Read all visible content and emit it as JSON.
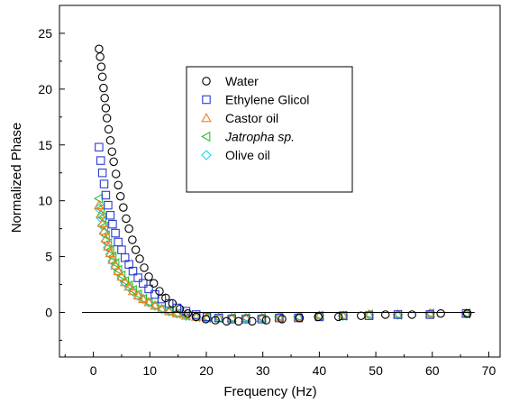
{
  "chart_data": {
    "type": "scatter",
    "title": "",
    "xlabel": "Frequency (Hz)",
    "ylabel": "Normalized Phase",
    "xlim": [
      -6,
      72
    ],
    "ylim": [
      -4,
      27.5
    ],
    "xticks": [
      0,
      10,
      20,
      30,
      40,
      50,
      60,
      70
    ],
    "yticks": [
      0,
      5,
      10,
      15,
      20,
      25
    ],
    "grid": false,
    "legend_position": "top-center",
    "reference_line_y": 0,
    "series": [
      {
        "name": "Water",
        "marker": "circle",
        "color": "#000000",
        "x": [
          1.0,
          1.2,
          1.4,
          1.6,
          1.8,
          2.0,
          2.2,
          2.4,
          2.7,
          3.0,
          3.3,
          3.6,
          4.0,
          4.4,
          4.8,
          5.3,
          5.8,
          6.3,
          6.9,
          7.5,
          8.2,
          9.0,
          9.8,
          10.7,
          11.7,
          12.8,
          14.0,
          15.3,
          16.7,
          18.2,
          19.9,
          21.6,
          23.6,
          25.7,
          28.1,
          30.6,
          33.4,
          36.5,
          39.8,
          43.4,
          47.4,
          51.7,
          56.4,
          61.5,
          66.2
        ],
        "y": [
          23.6,
          22.9,
          22.0,
          21.1,
          20.1,
          19.2,
          18.3,
          17.4,
          16.4,
          15.4,
          14.4,
          13.5,
          12.4,
          11.4,
          10.4,
          9.4,
          8.4,
          7.5,
          6.5,
          5.6,
          4.8,
          4.0,
          3.2,
          2.6,
          1.9,
          1.3,
          0.8,
          0.3,
          -0.1,
          -0.4,
          -0.6,
          -0.7,
          -0.8,
          -0.8,
          -0.8,
          -0.7,
          -0.6,
          -0.5,
          -0.4,
          -0.4,
          -0.3,
          -0.2,
          -0.2,
          -0.1,
          -0.1
        ]
      },
      {
        "name": "Ethylene Glicol",
        "marker": "square",
        "color": "#2b3bd1",
        "x": [
          1.0,
          1.3,
          1.6,
          1.9,
          2.2,
          2.6,
          3.0,
          3.4,
          3.9,
          4.4,
          5.0,
          5.6,
          6.3,
          7.0,
          7.9,
          8.8,
          9.8,
          10.9,
          12.1,
          13.4,
          14.8,
          16.4,
          18.2,
          20.1,
          22.2,
          24.5,
          27.0,
          29.8,
          32.9,
          36.3,
          40.0,
          44.2,
          48.8,
          53.9,
          59.6,
          66.0
        ],
        "y": [
          14.8,
          13.6,
          12.5,
          11.5,
          10.5,
          9.6,
          8.7,
          7.9,
          7.1,
          6.3,
          5.6,
          4.9,
          4.3,
          3.7,
          3.1,
          2.6,
          2.1,
          1.6,
          1.2,
          0.8,
          0.4,
          0.1,
          -0.2,
          -0.4,
          -0.5,
          -0.6,
          -0.6,
          -0.6,
          -0.5,
          -0.5,
          -0.4,
          -0.3,
          -0.3,
          -0.2,
          -0.2,
          -0.1
        ]
      },
      {
        "name": "Castor oil",
        "marker": "triangle-up",
        "color": "#f07f1e",
        "x": [
          1.0,
          1.3,
          1.6,
          1.9,
          2.2,
          2.6,
          3.0,
          3.4,
          3.9,
          4.4,
          5.0,
          5.6,
          6.3,
          7.0,
          7.9,
          8.8,
          9.8,
          10.9,
          12.1,
          13.4,
          14.8,
          16.4,
          18.2,
          20.1,
          22.2,
          24.5,
          27.0,
          29.8,
          32.9,
          36.3,
          40.0,
          44.2,
          48.8,
          53.9,
          59.6,
          66.0
        ],
        "y": [
          9.6,
          8.8,
          8.0,
          7.3,
          6.6,
          5.9,
          5.3,
          4.7,
          4.2,
          3.7,
          3.2,
          2.7,
          2.3,
          1.9,
          1.5,
          1.2,
          0.9,
          0.6,
          0.3,
          0.1,
          -0.1,
          -0.3,
          -0.4,
          -0.5,
          -0.5,
          -0.5,
          -0.5,
          -0.5,
          -0.4,
          -0.4,
          -0.3,
          -0.3,
          -0.2,
          -0.2,
          -0.1,
          -0.1
        ]
      },
      {
        "name": "Jatropha sp.",
        "marker": "triangle-left",
        "color": "#28c228",
        "x": [
          1.0,
          1.3,
          1.6,
          1.9,
          2.2,
          2.6,
          3.0,
          3.4,
          3.9,
          4.4,
          5.0,
          5.6,
          6.3,
          7.0,
          7.9,
          8.8,
          9.8,
          10.9,
          12.1,
          13.4,
          14.8,
          16.4,
          18.2,
          20.1,
          22.2,
          24.5,
          27.0,
          29.8,
          32.9,
          36.3,
          40.0,
          44.2,
          48.8,
          53.9,
          59.6,
          66.0
        ],
        "y": [
          10.2,
          9.3,
          8.5,
          7.7,
          6.9,
          6.2,
          5.6,
          5.0,
          4.4,
          3.8,
          3.3,
          2.8,
          2.4,
          2.0,
          1.6,
          1.2,
          0.9,
          0.6,
          0.3,
          0.1,
          -0.1,
          -0.3,
          -0.4,
          -0.5,
          -0.5,
          -0.5,
          -0.5,
          -0.5,
          -0.4,
          -0.4,
          -0.3,
          -0.3,
          -0.2,
          -0.2,
          -0.1,
          -0.1
        ]
      },
      {
        "name": "Olive oil",
        "marker": "diamond",
        "color": "#18d8f0",
        "x": [
          1.0,
          1.3,
          1.6,
          1.9,
          2.2,
          2.6,
          3.0,
          3.4,
          3.9,
          4.4,
          5.0,
          5.6,
          6.3,
          7.0,
          7.9,
          8.8,
          9.8,
          10.9,
          12.1,
          13.4,
          14.8,
          16.4,
          18.2,
          20.1,
          22.2,
          24.5,
          27.0,
          29.8,
          32.9,
          36.3,
          40.0,
          44.2,
          48.8,
          53.9,
          59.6,
          66.0
        ],
        "y": [
          9.3,
          8.5,
          7.8,
          7.1,
          6.4,
          5.8,
          5.2,
          4.6,
          4.1,
          3.6,
          3.1,
          2.7,
          2.3,
          1.9,
          1.5,
          1.2,
          0.9,
          0.6,
          0.3,
          0.1,
          -0.1,
          -0.3,
          -0.4,
          -0.5,
          -0.5,
          -0.5,
          -0.5,
          -0.5,
          -0.4,
          -0.4,
          -0.3,
          -0.3,
          -0.2,
          -0.2,
          -0.1,
          -0.1
        ]
      }
    ]
  }
}
